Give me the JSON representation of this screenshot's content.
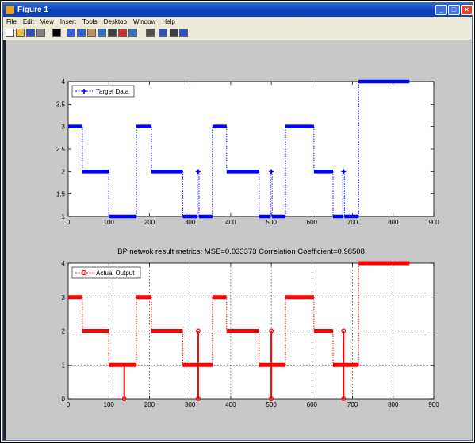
{
  "window": {
    "title": "Figure 1"
  },
  "menu": [
    "File",
    "Edit",
    "View",
    "Insert",
    "Tools",
    "Desktop",
    "Window",
    "Help"
  ],
  "toolbar_icons": [
    "new-figure-icon",
    "open-file-icon",
    "save-icon",
    "print-icon",
    "edit-plot-arrow-icon",
    "zoom-in-icon",
    "zoom-out-icon",
    "pan-icon",
    "rotate-3d-icon",
    "data-cursor-icon",
    "brush-icon",
    "link-plot-icon",
    "insert-colorbar-icon",
    "insert-legend-icon",
    "hide-plot-tools-icon",
    "show-plot-tools-icon"
  ],
  "chart_data": [
    {
      "type": "line",
      "title": "",
      "xlim": [
        0,
        900
      ],
      "ylim": [
        1,
        4
      ],
      "xticks": [
        0,
        100,
        200,
        300,
        400,
        500,
        600,
        700,
        800,
        900
      ],
      "yticks": [
        1,
        1.5,
        2,
        2.5,
        3,
        3.5,
        4
      ],
      "ytick_labels": [
        "1",
        "1.5",
        "2",
        "2.5",
        "3",
        "3.5",
        "4"
      ],
      "grid": false,
      "legend": "top-left",
      "series": [
        {
          "name": "Target Data",
          "color": "#0000ff",
          "marker": "plus",
          "segments": [
            {
              "x0": 0,
              "x1": 35,
              "y": 3
            },
            {
              "x0": 35,
              "x1": 100,
              "y": 2
            },
            {
              "x0": 100,
              "x1": 168,
              "y": 1
            },
            {
              "x0": 168,
              "x1": 205,
              "y": 3
            },
            {
              "x0": 205,
              "x1": 282,
              "y": 2
            },
            {
              "x0": 282,
              "x1": 318,
              "y": 1
            },
            {
              "x0": 318,
              "x1": 322,
              "y": 2
            },
            {
              "x0": 322,
              "x1": 355,
              "y": 1
            },
            {
              "x0": 355,
              "x1": 390,
              "y": 3
            },
            {
              "x0": 390,
              "x1": 470,
              "y": 2
            },
            {
              "x0": 470,
              "x1": 498,
              "y": 1
            },
            {
              "x0": 498,
              "x1": 502,
              "y": 2
            },
            {
              "x0": 502,
              "x1": 535,
              "y": 1
            },
            {
              "x0": 535,
              "x1": 605,
              "y": 3
            },
            {
              "x0": 605,
              "x1": 652,
              "y": 2
            },
            {
              "x0": 652,
              "x1": 676,
              "y": 1
            },
            {
              "x0": 676,
              "x1": 680,
              "y": 2
            },
            {
              "x0": 680,
              "x1": 715,
              "y": 1
            },
            {
              "x0": 715,
              "x1": 840,
              "y": 4
            }
          ]
        }
      ]
    },
    {
      "type": "line",
      "title": "BP netwok result metrics: MSE=0.033373  Correlation Coefficient=0.98508",
      "xlim": [
        0,
        900
      ],
      "ylim": [
        0,
        4
      ],
      "xticks": [
        0,
        100,
        200,
        300,
        400,
        500,
        600,
        700,
        800,
        900
      ],
      "yticks": [
        0,
        1,
        2,
        3,
        4
      ],
      "ytick_labels": [
        "0",
        "1",
        "2",
        "3",
        "4"
      ],
      "grid": true,
      "legend": "top-left",
      "series": [
        {
          "name": "Actual Output",
          "color": "#ff0000",
          "marker": "circle",
          "segments": [
            {
              "x0": 0,
              "x1": 35,
              "y": 3
            },
            {
              "x0": 35,
              "x1": 100,
              "y": 2
            },
            {
              "x0": 100,
              "x1": 168,
              "y": 1
            },
            {
              "x0": 168,
              "x1": 205,
              "y": 3
            },
            {
              "x0": 205,
              "x1": 282,
              "y": 2
            },
            {
              "x0": 282,
              "x1": 355,
              "y": 1
            },
            {
              "x0": 355,
              "x1": 390,
              "y": 3
            },
            {
              "x0": 390,
              "x1": 470,
              "y": 2
            },
            {
              "x0": 470,
              "x1": 535,
              "y": 1
            },
            {
              "x0": 535,
              "x1": 605,
              "y": 3
            },
            {
              "x0": 605,
              "x1": 652,
              "y": 2
            },
            {
              "x0": 652,
              "x1": 715,
              "y": 1
            },
            {
              "x0": 715,
              "x1": 840,
              "y": 4
            }
          ],
          "spikes": [
            {
              "x": 138,
              "from": 1,
              "to": 0
            },
            {
              "x": 320,
              "from": 1,
              "to": 2
            },
            {
              "x": 320,
              "from": 1,
              "to": 0
            },
            {
              "x": 500,
              "from": 1,
              "to": 2
            },
            {
              "x": 500,
              "from": 1,
              "to": 0
            },
            {
              "x": 678,
              "from": 1,
              "to": 2
            },
            {
              "x": 678,
              "from": 1,
              "to": 0
            }
          ]
        }
      ]
    }
  ]
}
